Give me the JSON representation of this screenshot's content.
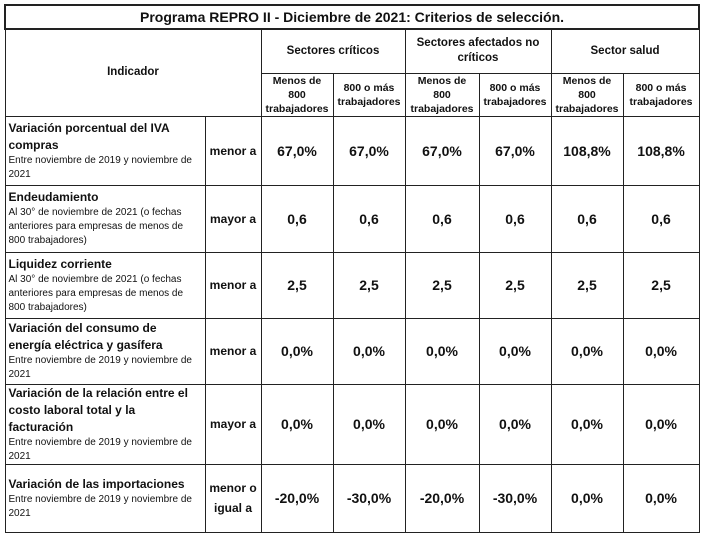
{
  "table": {
    "title": "Programa REPRO II - Diciembre de 2021: Criterios de selección.",
    "indicator_header": "Indicador",
    "groups": [
      {
        "name": "Sectores críticos",
        "columns": [
          "Menos de 800 trabajadores",
          "800 o más trabajadores"
        ]
      },
      {
        "name": "Sectores afectados no críticos",
        "columns": [
          "Menos de 800 trabajadores",
          "800 o más trabajadores"
        ]
      },
      {
        "name": "Sector salud",
        "columns": [
          "Menos de 800 trabajadores",
          "800 o más trabajadores"
        ]
      }
    ],
    "rows": [
      {
        "indicator": "Variación porcentual del IVA compras",
        "note": "Entre noviembre de 2019 y noviembre de 2021",
        "comparator": "menor a",
        "values": [
          "67,0%",
          "67,0%",
          "67,0%",
          "67,0%",
          "108,8%",
          "108,8%"
        ]
      },
      {
        "indicator": "Endeudamiento",
        "note": "Al 30° de noviembre de 2021 (o fechas anteriores para empresas de menos de 800 trabajadores)",
        "comparator": "mayor a",
        "values": [
          "0,6",
          "0,6",
          "0,6",
          "0,6",
          "0,6",
          "0,6"
        ]
      },
      {
        "indicator": "Liquidez corriente",
        "note": "Al 30° de noviembre de 2021 (o fechas anteriores para empresas de menos de 800 trabajadores)",
        "comparator": "menor a",
        "values": [
          "2,5",
          "2,5",
          "2,5",
          "2,5",
          "2,5",
          "2,5"
        ]
      },
      {
        "indicator": "Variación del consumo de energía eléctrica y gasífera",
        "note": "Entre noviembre de 2019 y noviembre de 2021",
        "comparator": "menor a",
        "values": [
          "0,0%",
          "0,0%",
          "0,0%",
          "0,0%",
          "0,0%",
          "0,0%"
        ]
      },
      {
        "indicator": "Variación de la relación entre el costo laboral total y la facturación",
        "note": "Entre noviembre de 2019 y noviembre de 2021",
        "comparator": "mayor a",
        "values": [
          "0,0%",
          "0,0%",
          "0,0%",
          "0,0%",
          "0,0%",
          "0,0%"
        ]
      },
      {
        "indicator": "Variación de las importaciones",
        "note": "Entre noviembre de 2019 y noviembre de 2021",
        "comparator": "menor o igual a",
        "values": [
          "-20,0%",
          "-30,0%",
          "-20,0%",
          "-30,0%",
          "0,0%",
          "0,0%"
        ]
      }
    ]
  }
}
